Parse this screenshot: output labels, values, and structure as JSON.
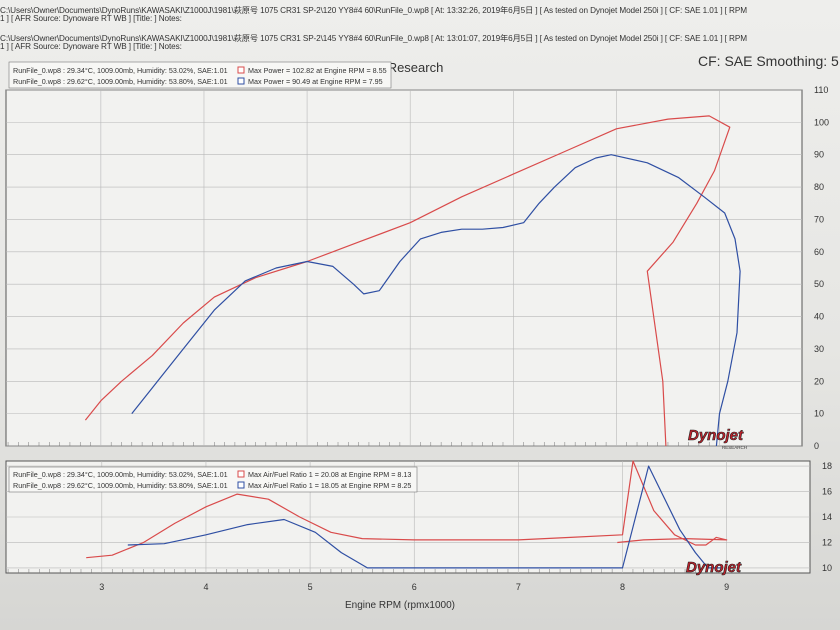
{
  "header": {
    "lines": [
      "C:\\Users\\Owner\\Documents\\DynoRuns\\KAWASAKI\\Z1000J\\1981\\萩原号   1075 CR31 SP-2\\120 YY8#4 60\\RunFile_0.wp8 [ At: 13:32:26, 2019年6月5日 ] [ As tested on Dynojet Model 250i ] [ CF: SAE 1.01 ] [ RPM",
      "1 ] [ AFR Source: Dynoware RT WB ] [Title: ]  Notes:",
      "C:\\Users\\Owner\\Documents\\DynoRuns\\KAWASAKI\\Z1000J\\1981\\萩原号   1075 CR31 SP-2\\145 YY8#4 60\\RunFile_0.wp8 [ At: 13:01:07, 2019年6月5日 ] [ As tested on Dynojet Model 250i ] [ CF: SAE 1.01 ] [ RPM",
      "1 ] [ AFR Source: Dynoware RT WB ] [Title: ]  Notes:"
    ],
    "company": "Dynojet Research",
    "cf_smoothing": "CF: SAE Smoothing: 5"
  },
  "colors": {
    "red": "#d94b4b",
    "blue": "#2f4fa3",
    "grid": "#b8b8b8",
    "logo_red": "#c0202a"
  },
  "logo": {
    "text": "Dynojet",
    "sub": "RESEARCH"
  },
  "chart_data": [
    {
      "type": "line",
      "name": "power",
      "legend": [
        {
          "run": "RunFile_0.wp8 : 29.34°C, 1009.00mb, Humidity: 53.02%, SAE:1.01",
          "max": "Max Power = 102.82 at Engine RPM = 8.55",
          "color": "red"
        },
        {
          "run": "RunFile_0.wp8 : 29.62°C, 1009.00mb, Humidity: 53.80%, SAE:1.01",
          "max": "Max Power = 90.49 at Engine RPM = 7.95",
          "color": "blue"
        }
      ],
      "xlim": [
        2.08,
        9.8
      ],
      "ylim": [
        0,
        110
      ],
      "yticks": [
        0,
        10,
        20,
        30,
        40,
        50,
        60,
        70,
        80,
        90,
        100,
        110
      ],
      "series": [
        {
          "color": "red",
          "points": [
            [
              2.85,
              8
            ],
            [
              3.0,
              14
            ],
            [
              3.2,
              20
            ],
            [
              3.5,
              28
            ],
            [
              3.8,
              38
            ],
            [
              4.1,
              46
            ],
            [
              4.5,
              52
            ],
            [
              5.0,
              57
            ],
            [
              5.5,
              63
            ],
            [
              6.0,
              69
            ],
            [
              6.5,
              77
            ],
            [
              7.0,
              84
            ],
            [
              7.5,
              91
            ],
            [
              8.0,
              98
            ],
            [
              8.5,
              101
            ],
            [
              8.9,
              102
            ],
            [
              9.1,
              98.5
            ],
            [
              8.95,
              85
            ],
            [
              8.78,
              75
            ],
            [
              8.55,
              63
            ],
            [
              8.3,
              54
            ],
            [
              8.45,
              20
            ],
            [
              8.48,
              0
            ]
          ]
        },
        {
          "color": "blue",
          "points": [
            [
              3.3,
              10
            ],
            [
              3.5,
              18
            ],
            [
              3.8,
              30
            ],
            [
              4.1,
              42
            ],
            [
              4.4,
              51
            ],
            [
              4.7,
              55
            ],
            [
              5.0,
              57
            ],
            [
              5.25,
              55.5
            ],
            [
              5.45,
              50
            ],
            [
              5.55,
              47
            ],
            [
              5.7,
              48
            ],
            [
              5.9,
              57
            ],
            [
              6.1,
              64
            ],
            [
              6.3,
              66
            ],
            [
              6.5,
              67
            ],
            [
              6.7,
              67
            ],
            [
              6.9,
              67.5
            ],
            [
              7.1,
              69
            ],
            [
              7.25,
              75
            ],
            [
              7.4,
              80
            ],
            [
              7.6,
              86
            ],
            [
              7.8,
              89
            ],
            [
              7.95,
              90
            ],
            [
              8.3,
              87.5
            ],
            [
              8.6,
              83
            ],
            [
              8.85,
              77
            ],
            [
              9.05,
              72
            ],
            [
              9.15,
              64
            ],
            [
              9.2,
              54
            ],
            [
              9.17,
              35
            ],
            [
              9.08,
              20
            ],
            [
              9.0,
              10
            ],
            [
              8.97,
              0
            ]
          ]
        }
      ]
    },
    {
      "type": "line",
      "name": "air-fuel",
      "xlabel": "Engine RPM (rpmx1000)",
      "legend": [
        {
          "run": "RunFile_0.wp8 : 29.34°C, 1009.00mb, Humidity: 53.02%, SAE:1.01",
          "max": "Max Air/Fuel Ratio 1 = 20.08 at Engine RPM = 8.13",
          "color": "red"
        },
        {
          "run": "RunFile_0.wp8 : 29.62°C, 1009.00mb, Humidity: 53.80%, SAE:1.01",
          "max": "Max Air/Fuel Ratio 1 = 18.05 at Engine RPM = 8.25",
          "color": "blue"
        }
      ],
      "xlim": [
        2.08,
        9.8
      ],
      "ylim": [
        9.6,
        18.4
      ],
      "yticks": [
        10,
        12,
        14,
        16,
        18
      ],
      "xticks": [
        3,
        4,
        5,
        6,
        7,
        8,
        9
      ],
      "series": [
        {
          "color": "red",
          "points": [
            [
              2.85,
              10.8
            ],
            [
              3.1,
              11
            ],
            [
              3.4,
              12
            ],
            [
              3.7,
              13.5
            ],
            [
              4.0,
              14.8
            ],
            [
              4.3,
              15.8
            ],
            [
              4.6,
              15.4
            ],
            [
              4.9,
              14
            ],
            [
              5.2,
              12.8
            ],
            [
              5.5,
              12.3
            ],
            [
              6.0,
              12.2
            ],
            [
              6.5,
              12.2
            ],
            [
              7.0,
              12.2
            ],
            [
              7.5,
              12.4
            ],
            [
              8.0,
              12.6
            ],
            [
              8.1,
              18.4
            ],
            [
              8.3,
              14.5
            ],
            [
              8.5,
              12.6
            ],
            [
              8.7,
              11.8
            ],
            [
              8.8,
              11.8
            ],
            [
              8.9,
              12.4
            ],
            [
              9.0,
              12.2
            ],
            [
              8.6,
              12.3
            ],
            [
              8.2,
              12.2
            ],
            [
              7.95,
              12.0
            ]
          ]
        },
        {
          "color": "blue",
          "points": [
            [
              3.25,
              11.8
            ],
            [
              3.6,
              11.9
            ],
            [
              4.0,
              12.6
            ],
            [
              4.4,
              13.4
            ],
            [
              4.75,
              13.8
            ],
            [
              5.05,
              12.8
            ],
            [
              5.3,
              11.2
            ],
            [
              5.55,
              10.0
            ],
            [
              6.0,
              10.0
            ],
            [
              6.5,
              10.0
            ],
            [
              7.0,
              10.0
            ],
            [
              7.5,
              10.0
            ],
            [
              8.0,
              10.0
            ],
            [
              8.25,
              18.0
            ],
            [
              8.4,
              15.5
            ],
            [
              8.55,
              13.0
            ],
            [
              8.7,
              11.2
            ],
            [
              8.82,
              10.0
            ],
            [
              8.95,
              10.0
            ]
          ]
        }
      ]
    }
  ]
}
